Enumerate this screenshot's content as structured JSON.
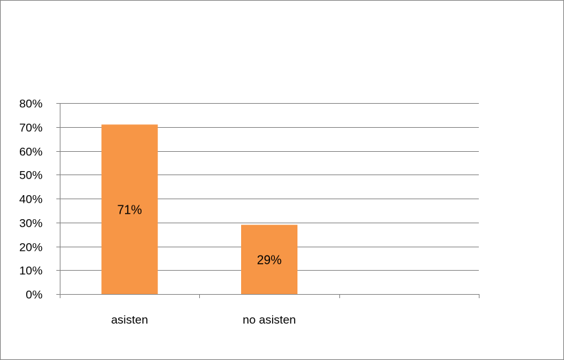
{
  "chart_data": {
    "type": "bar",
    "title": "",
    "xlabel": "",
    "ylabel": "",
    "categories": [
      "asisten",
      "no asisten"
    ],
    "values": [
      71,
      29
    ],
    "data_labels": [
      "71%",
      "29%"
    ],
    "ylim": [
      0,
      80
    ],
    "y_ticks": [
      0,
      10,
      20,
      30,
      40,
      50,
      60,
      70,
      80
    ],
    "y_tick_labels": [
      "0%",
      "10%",
      "20%",
      "30%",
      "40%",
      "50%",
      "60%",
      "70%",
      "80%"
    ],
    "empty_category_slots": 1,
    "grid": true,
    "legend": "none",
    "colors": {
      "bar": "#F79646",
      "grid": "#868686",
      "frame": "#868686"
    }
  }
}
